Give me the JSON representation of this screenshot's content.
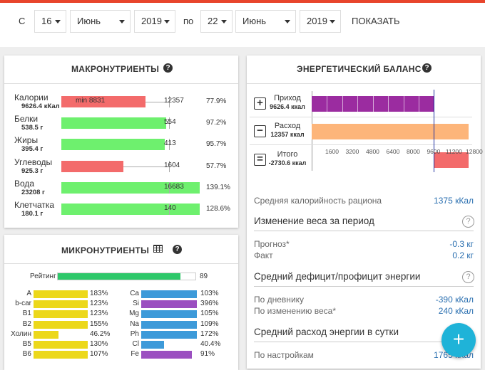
{
  "filter": {
    "from_label": "С",
    "from_day": "16",
    "from_month": "Июнь",
    "from_year": "2019",
    "to_label": "по",
    "to_day": "22",
    "to_month": "Июнь",
    "to_year": "2019",
    "button": "ПОКАЗАТЬ"
  },
  "macros": {
    "title": "МАКРОНУТРИЕНТЫ",
    "rows": [
      {
        "name": "Калории",
        "amount": "9626.4 кКал",
        "min": "min 8831",
        "target": 12357,
        "pct": 77.9,
        "pct_label": "77.9%",
        "color": "#f36b6b"
      },
      {
        "name": "Белки",
        "amount": "538.5 г",
        "target": 554,
        "pct": 97.2,
        "pct_label": "97.2%",
        "color": "#6ef06e"
      },
      {
        "name": "Жиры",
        "amount": "395.4 г",
        "target": 413,
        "pct": 95.7,
        "pct_label": "95.7%",
        "color": "#6ef06e"
      },
      {
        "name": "Углеводы",
        "amount": "925.3 г",
        "target": 1604,
        "pct": 57.7,
        "pct_label": "57.7%",
        "color": "#f36b6b"
      },
      {
        "name": "Вода",
        "amount": "23208 г",
        "target": 16683,
        "pct": 139.1,
        "pct_label": "139.1%",
        "color": "#6ef06e"
      },
      {
        "name": "Клетчатка",
        "amount": "180.1 г",
        "target": 140,
        "pct": 128.6,
        "pct_label": "128.6%",
        "color": "#6ef06e"
      }
    ]
  },
  "micros": {
    "title": "МИКРОНУТРИЕНТЫ",
    "rating_label": "Рейтинг",
    "rating": 89,
    "left": [
      {
        "name": "A",
        "pct": 183,
        "pct_label": "183%",
        "color": "#ecd81a"
      },
      {
        "name": "b-car",
        "pct": 123,
        "pct_label": "123%",
        "color": "#ecd81a"
      },
      {
        "name": "B1",
        "pct": 123,
        "pct_label": "123%",
        "color": "#ecd81a"
      },
      {
        "name": "B2",
        "pct": 155,
        "pct_label": "155%",
        "color": "#ecd81a"
      },
      {
        "name": "Холин",
        "pct": 46.2,
        "pct_label": "46.2%",
        "color": "#ecd81a"
      },
      {
        "name": "B5",
        "pct": 130,
        "pct_label": "130%",
        "color": "#ecd81a"
      },
      {
        "name": "B6",
        "pct": 107,
        "pct_label": "107%",
        "color": "#ecd81a"
      }
    ],
    "right": [
      {
        "name": "Ca",
        "pct": 103,
        "pct_label": "103%",
        "color": "#3d9ad9"
      },
      {
        "name": "Si",
        "pct": 396,
        "pct_label": "396%",
        "color": "#9b4fc0"
      },
      {
        "name": "Mg",
        "pct": 105,
        "pct_label": "105%",
        "color": "#3d9ad9"
      },
      {
        "name": "Na",
        "pct": 109,
        "pct_label": "109%",
        "color": "#3d9ad9"
      },
      {
        "name": "Ph",
        "pct": 172,
        "pct_label": "172%",
        "color": "#3d9ad9"
      },
      {
        "name": "Cl",
        "pct": 40.4,
        "pct_label": "40.4%",
        "color": "#3d9ad9"
      },
      {
        "name": "Fe",
        "pct": 91,
        "pct_label": "91%",
        "color": "#9b4fc0"
      }
    ]
  },
  "energy": {
    "title": "ЭНЕРГЕТИЧЕСКИЙ БАЛАНС",
    "income": {
      "label": "Приход",
      "value": 9626.4,
      "value_label": "9626.4 ккал",
      "color": "#9b2ca0"
    },
    "expense": {
      "label": "Расход",
      "value": 12357,
      "value_label": "12357 ккал",
      "color": "#fdb57a"
    },
    "total": {
      "label": "Итого",
      "value": -2730.6,
      "value_label": "-2730.6 ккал",
      "color": "#f36b6b"
    },
    "xticks": [
      1600,
      3200,
      4800,
      6400,
      8000,
      9600,
      11200,
      12800
    ]
  },
  "stats": {
    "avg_label": "Средняя калорийность рациона",
    "avg_value": "1375 кКал",
    "sections": [
      {
        "title": "Изменение веса за период",
        "rows": [
          {
            "label": "Прогноз*",
            "value": "-0.3 кг"
          },
          {
            "label": "Факт",
            "value": "0.2 кг"
          }
        ]
      },
      {
        "title": "Средний дефицит/профицит энергии",
        "rows": [
          {
            "label": "По дневнику",
            "value": "-390 кКал"
          },
          {
            "label": "По изменению веса*",
            "value": "240 кКал"
          }
        ]
      },
      {
        "title": "Средний расход энергии в сутки",
        "rows": [
          {
            "label": "По настройкам",
            "value": "1765 кКал"
          }
        ]
      }
    ]
  }
}
